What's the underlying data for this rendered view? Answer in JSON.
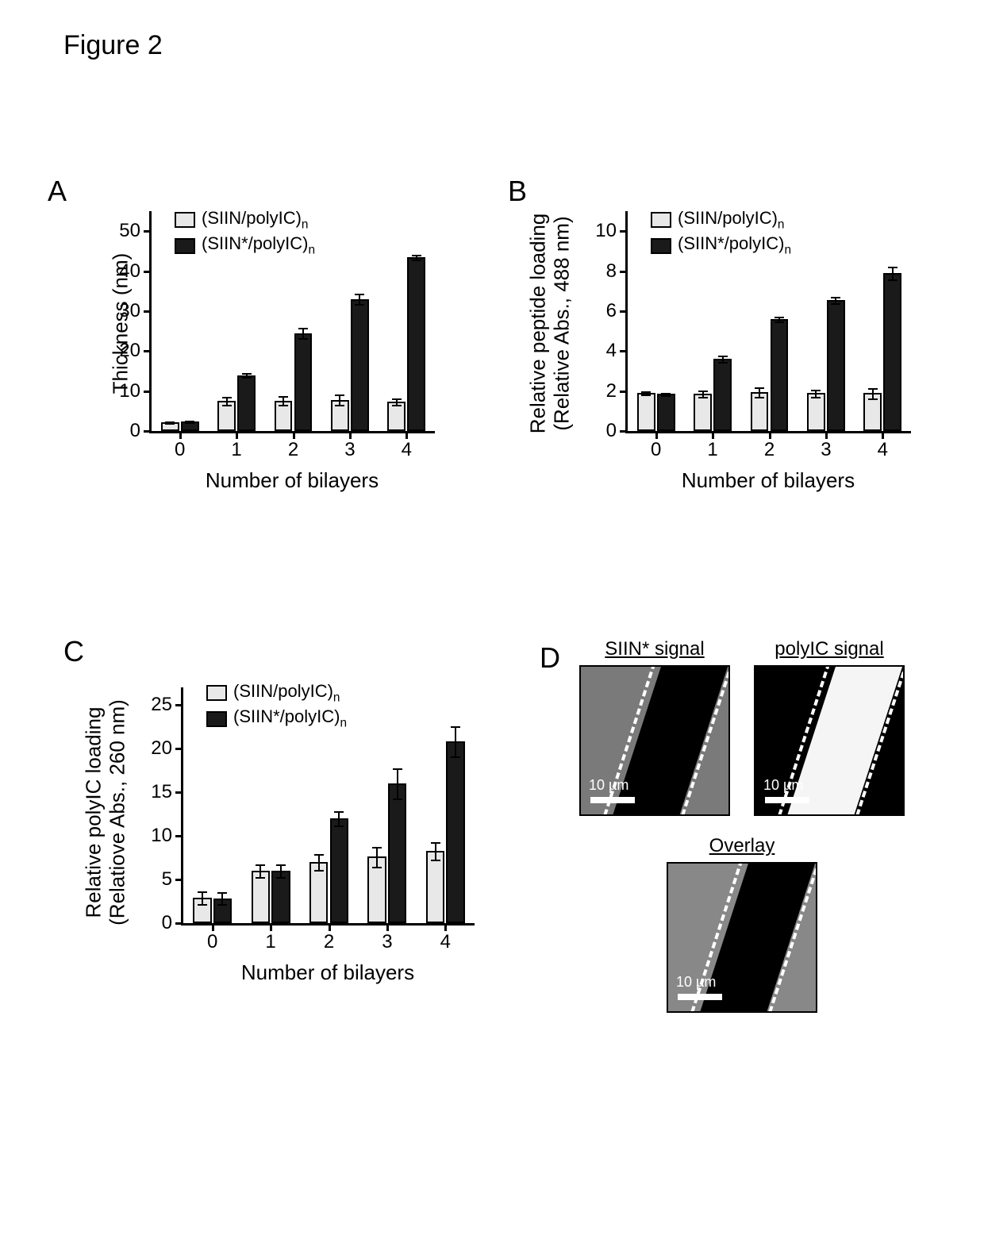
{
  "figure_title": "Figure 2",
  "legend_labels": {
    "light": "(SIIN/polyIC)",
    "dark": "(SIIN*/polyIC)",
    "subscript": "n"
  },
  "colors": {
    "light_bar": "#e8e8e8",
    "dark_bar": "#1a1a1a",
    "axis": "#000000",
    "background": "#ffffff"
  },
  "panelA": {
    "label": "A",
    "type": "bar",
    "ylabel": "Thickness (nm)",
    "xlabel": "Number of bilayers",
    "ylim": [
      0,
      55
    ],
    "yticks": [
      0,
      10,
      20,
      30,
      40,
      50
    ],
    "categories": [
      "0",
      "1",
      "2",
      "3",
      "4"
    ],
    "series": [
      {
        "name": "light",
        "values": [
          2.2,
          7.5,
          7.6,
          7.8,
          7.4
        ],
        "err": [
          0.4,
          1.2,
          1.3,
          1.5,
          1.0
        ]
      },
      {
        "name": "dark",
        "values": [
          2.3,
          14.0,
          24.5,
          33.0,
          43.5
        ],
        "err": [
          0.4,
          0.7,
          1.5,
          1.5,
          0.8
        ]
      }
    ]
  },
  "panelB": {
    "label": "B",
    "type": "bar",
    "ylabel_line1": "Relative peptide loading",
    "ylabel_line2": "(Relative Abs., 488 nm)",
    "xlabel": "Number of bilayers",
    "ylim": [
      0,
      11
    ],
    "yticks": [
      0,
      2,
      4,
      6,
      8,
      10
    ],
    "categories": [
      "0",
      "1",
      "2",
      "3",
      "4"
    ],
    "series": [
      {
        "name": "light",
        "values": [
          1.9,
          1.85,
          1.95,
          1.9,
          1.9
        ],
        "err": [
          0.12,
          0.2,
          0.28,
          0.22,
          0.3
        ]
      },
      {
        "name": "dark",
        "values": [
          1.85,
          3.6,
          5.6,
          6.55,
          7.9
        ],
        "err": [
          0.1,
          0.2,
          0.15,
          0.2,
          0.35
        ]
      }
    ]
  },
  "panelC": {
    "label": "C",
    "type": "bar",
    "ylabel_line1": "Relative polyIC loading",
    "ylabel_line2": "(Relatiove Abs., 260 nm)",
    "xlabel": "Number of bilayers",
    "ylim": [
      0,
      27
    ],
    "yticks": [
      0,
      5,
      10,
      15,
      20,
      25
    ],
    "categories": [
      "0",
      "1",
      "2",
      "3",
      "4"
    ],
    "series": [
      {
        "name": "light",
        "values": [
          2.9,
          6.0,
          7.0,
          7.6,
          8.3
        ],
        "err": [
          0.8,
          0.8,
          1.0,
          1.2,
          1.1
        ]
      },
      {
        "name": "dark",
        "values": [
          2.85,
          6.0,
          12.0,
          16.0,
          20.8
        ],
        "err": [
          0.8,
          0.8,
          0.9,
          1.8,
          1.8
        ]
      }
    ]
  },
  "panelD": {
    "label": "D",
    "titles": {
      "siin": "SIIN* signal",
      "polyic": "polyIC signal",
      "overlay": "Overlay"
    },
    "scalebar_label": "10 µm"
  }
}
